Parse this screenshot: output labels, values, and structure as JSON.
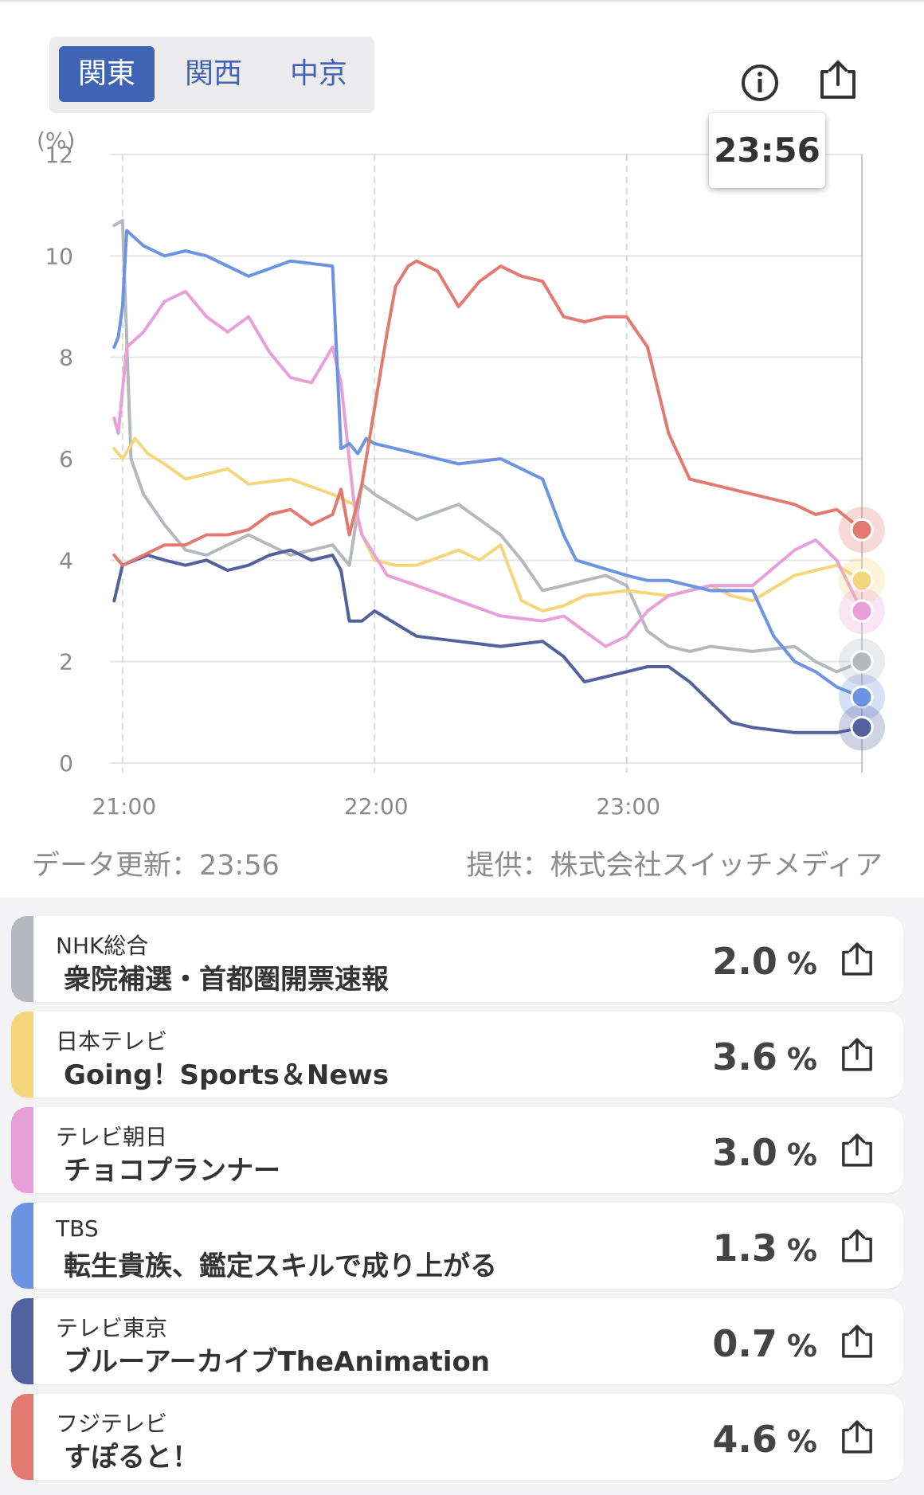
{
  "region_tabs": [
    {
      "label": "関東",
      "active": true
    },
    {
      "label": "関西",
      "active": false
    },
    {
      "label": "中京",
      "active": false
    }
  ],
  "header_icons": [
    "info-icon",
    "share-icon"
  ],
  "tooltip": {
    "time": "23:56"
  },
  "footer": {
    "updated": "データ更新：23:56",
    "provider": "提供：株式会社スイッチメディア"
  },
  "chart_data": {
    "type": "line",
    "title": "",
    "xlabel": "",
    "ylabel": "(%)",
    "ylim": [
      0,
      12
    ],
    "yticks": [
      "0",
      "2",
      "4",
      "6",
      "8",
      "10",
      "12"
    ],
    "xlim": [
      "20:57",
      "23:56"
    ],
    "xticks": [
      "21:00",
      "22:00",
      "23:00"
    ],
    "grid": true,
    "legend": "none",
    "series": [
      {
        "key": "nhk",
        "color": "#b5b8bf",
        "times": [
          "20:58",
          "21:00",
          "21:02",
          "21:05",
          "21:10",
          "21:15",
          "21:20",
          "21:30",
          "21:40",
          "21:50",
          "21:54",
          "21:57",
          "22:00",
          "22:10",
          "22:20",
          "22:30",
          "22:35",
          "22:40",
          "22:45",
          "22:50",
          "22:55",
          "23:00",
          "23:05",
          "23:10",
          "23:15",
          "23:20",
          "23:30",
          "23:40",
          "23:45",
          "23:50",
          "23:56"
        ],
        "values": [
          10.6,
          10.7,
          6.0,
          5.3,
          4.7,
          4.2,
          4.1,
          4.5,
          4.1,
          4.3,
          3.9,
          5.5,
          5.3,
          4.8,
          5.1,
          4.5,
          4.0,
          3.4,
          3.5,
          3.6,
          3.7,
          3.5,
          2.6,
          2.3,
          2.2,
          2.3,
          2.2,
          2.3,
          2.0,
          1.8,
          2.0
        ]
      },
      {
        "key": "ntv",
        "color": "#f5d67a",
        "times": [
          "20:58",
          "21:00",
          "21:03",
          "21:06",
          "21:10",
          "21:15",
          "21:20",
          "21:25",
          "21:30",
          "21:40",
          "21:50",
          "21:55",
          "21:57",
          "22:00",
          "22:05",
          "22:10",
          "22:20",
          "22:25",
          "22:30",
          "22:35",
          "22:40",
          "22:45",
          "22:50",
          "23:00",
          "23:10",
          "23:20",
          "23:25",
          "23:30",
          "23:40",
          "23:45",
          "23:50",
          "23:56"
        ],
        "values": [
          6.2,
          6.0,
          6.4,
          6.1,
          5.9,
          5.6,
          5.7,
          5.8,
          5.5,
          5.6,
          5.3,
          5.1,
          4.5,
          4.0,
          3.9,
          3.9,
          4.2,
          4.0,
          4.3,
          3.2,
          3.0,
          3.1,
          3.3,
          3.4,
          3.3,
          3.5,
          3.3,
          3.2,
          3.7,
          3.8,
          3.9,
          3.6
        ]
      },
      {
        "key": "asahi",
        "color": "#e8a0d8",
        "times": [
          "20:58",
          "20:59",
          "21:01",
          "21:05",
          "21:10",
          "21:15",
          "21:20",
          "21:25",
          "21:30",
          "21:35",
          "21:40",
          "21:45",
          "21:50",
          "21:52",
          "21:55",
          "21:57",
          "22:00",
          "22:03",
          "22:10",
          "22:20",
          "22:30",
          "22:40",
          "22:45",
          "22:50",
          "22:55",
          "23:00",
          "23:05",
          "23:10",
          "23:20",
          "23:30",
          "23:40",
          "23:45",
          "23:50",
          "23:56"
        ],
        "values": [
          6.8,
          6.5,
          8.2,
          8.5,
          9.1,
          9.3,
          8.8,
          8.5,
          8.8,
          8.1,
          7.6,
          7.5,
          8.2,
          7.5,
          5.2,
          4.5,
          4.1,
          3.7,
          3.5,
          3.2,
          2.9,
          2.8,
          2.9,
          2.6,
          2.3,
          2.5,
          3.0,
          3.3,
          3.5,
          3.5,
          4.2,
          4.4,
          4.0,
          3.0
        ]
      },
      {
        "key": "tbs",
        "color": "#6d93e3",
        "times": [
          "20:58",
          "20:59",
          "21:00",
          "21:01",
          "21:05",
          "21:10",
          "21:15",
          "21:20",
          "21:30",
          "21:40",
          "21:50",
          "21:52",
          "21:54",
          "21:56",
          "21:58",
          "22:00",
          "22:10",
          "22:20",
          "22:30",
          "22:40",
          "22:45",
          "22:48",
          "22:52",
          "23:00",
          "23:05",
          "23:10",
          "23:20",
          "23:30",
          "23:35",
          "23:40",
          "23:45",
          "23:50",
          "23:56"
        ],
        "values": [
          8.2,
          8.4,
          9.0,
          10.5,
          10.2,
          10.0,
          10.1,
          10.0,
          9.6,
          9.9,
          9.8,
          6.2,
          6.3,
          6.1,
          6.4,
          6.3,
          6.1,
          5.9,
          6.0,
          5.6,
          4.5,
          4.0,
          3.9,
          3.7,
          3.6,
          3.6,
          3.4,
          3.4,
          2.5,
          2.0,
          1.8,
          1.5,
          1.3
        ]
      },
      {
        "key": "tx",
        "color": "#53629e",
        "times": [
          "20:58",
          "21:00",
          "21:03",
          "21:06",
          "21:10",
          "21:15",
          "21:20",
          "21:25",
          "21:30",
          "21:35",
          "21:40",
          "21:45",
          "21:50",
          "21:52",
          "21:54",
          "21:57",
          "22:00",
          "22:10",
          "22:20",
          "22:30",
          "22:40",
          "22:45",
          "22:50",
          "23:00",
          "23:05",
          "23:10",
          "23:15",
          "23:20",
          "23:25",
          "23:30",
          "23:40",
          "23:50",
          "23:56"
        ],
        "values": [
          3.2,
          3.9,
          4.0,
          4.1,
          4.0,
          3.9,
          4.0,
          3.8,
          3.9,
          4.1,
          4.2,
          4.0,
          4.1,
          3.8,
          2.8,
          2.8,
          3.0,
          2.5,
          2.4,
          2.3,
          2.4,
          2.1,
          1.6,
          1.8,
          1.9,
          1.9,
          1.6,
          1.2,
          0.8,
          0.7,
          0.6,
          0.6,
          0.7
        ]
      },
      {
        "key": "fuji",
        "color": "#e37a72",
        "times": [
          "20:58",
          "21:00",
          "21:05",
          "21:10",
          "21:15",
          "21:20",
          "21:25",
          "21:30",
          "21:35",
          "21:40",
          "21:45",
          "21:50",
          "21:52",
          "21:54",
          "21:57",
          "22:00",
          "22:03",
          "22:05",
          "22:08",
          "22:10",
          "22:15",
          "22:20",
          "22:25",
          "22:30",
          "22:35",
          "22:40",
          "22:45",
          "22:50",
          "22:55",
          "23:00",
          "23:05",
          "23:10",
          "23:15",
          "23:20",
          "23:25",
          "23:30",
          "23:40",
          "23:45",
          "23:50",
          "23:56"
        ],
        "values": [
          4.1,
          3.9,
          4.1,
          4.3,
          4.3,
          4.5,
          4.5,
          4.6,
          4.9,
          5.0,
          4.7,
          4.9,
          5.4,
          4.5,
          5.5,
          7.0,
          8.5,
          9.4,
          9.8,
          9.9,
          9.7,
          9.0,
          9.5,
          9.8,
          9.6,
          9.5,
          8.8,
          8.7,
          8.8,
          8.8,
          8.2,
          6.5,
          5.6,
          5.5,
          5.4,
          5.3,
          5.1,
          4.9,
          5.0,
          4.6
        ]
      }
    ]
  },
  "channels": [
    {
      "key": "nhk",
      "channel": "NHK総合",
      "program": "衆院補選・首都圏開票速報",
      "rating": "2.0",
      "unit": "%",
      "color": "#b5b8bf"
    },
    {
      "key": "ntv",
      "channel": "日本テレビ",
      "program": "Going！Sports＆News",
      "rating": "3.6",
      "unit": "%",
      "color": "#f5d67a"
    },
    {
      "key": "asahi",
      "channel": "テレビ朝日",
      "program": "チョコプランナー",
      "rating": "3.0",
      "unit": "%",
      "color": "#e8a0d8"
    },
    {
      "key": "tbs",
      "channel": "TBS",
      "program": "転生貴族、鑑定スキルで成り上がる",
      "rating": "1.3",
      "unit": "%",
      "color": "#6d93e3"
    },
    {
      "key": "tx",
      "channel": "テレビ東京",
      "program": "ブルーアーカイブTheAnimation",
      "rating": "0.7",
      "unit": "%",
      "color": "#53629e"
    },
    {
      "key": "fuji",
      "channel": "フジテレビ",
      "program": "すぽると！",
      "rating": "4.6",
      "unit": "%",
      "color": "#e37a72"
    }
  ]
}
